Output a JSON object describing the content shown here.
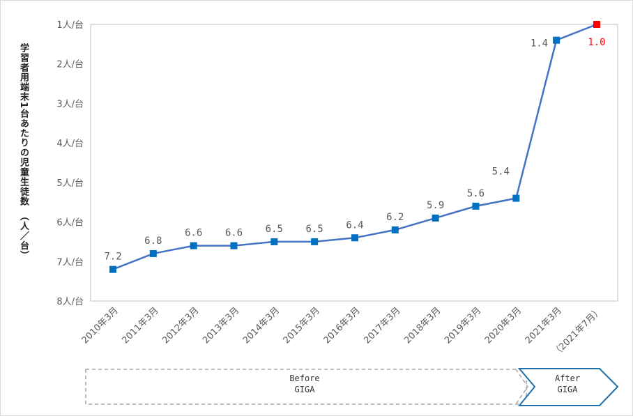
{
  "chart_data": {
    "type": "line",
    "ylabel": "学習者用端末1台あたりの児童生徒数　（人／台）",
    "yticks": [
      "1人/台",
      "2人/台",
      "3人/台",
      "4人/台",
      "5人/台",
      "6人/台",
      "7人/台",
      "8人/台"
    ],
    "ylim": [
      1,
      8
    ],
    "y_axis_inverted": true,
    "grid": false,
    "categories": [
      "2010年3月",
      "2011年3月",
      "2012年3月",
      "2013年3月",
      "2014年3月",
      "2015年3月",
      "2016年3月",
      "2017年3月",
      "2018年3月",
      "2019年3月",
      "2020年3月",
      "2021年3月",
      "（2021年7月）"
    ],
    "values": [
      7.2,
      6.8,
      6.6,
      6.6,
      6.5,
      6.5,
      6.4,
      6.2,
      5.9,
      5.6,
      5.4,
      1.4,
      1.0
    ],
    "data_labels": [
      "7.2",
      "6.8",
      "6.6",
      "6.6",
      "6.5",
      "6.5",
      "6.4",
      "6.2",
      "5.9",
      "5.6",
      "5.4",
      "1.4",
      "1.0"
    ],
    "series_color": "#4472c4",
    "marker_color": "#0070c0",
    "highlight_color": "#ff0000",
    "phases": [
      {
        "line1": "Before",
        "line2": "GIGA"
      },
      {
        "line1": "After",
        "line2": "GIGA"
      }
    ]
  }
}
